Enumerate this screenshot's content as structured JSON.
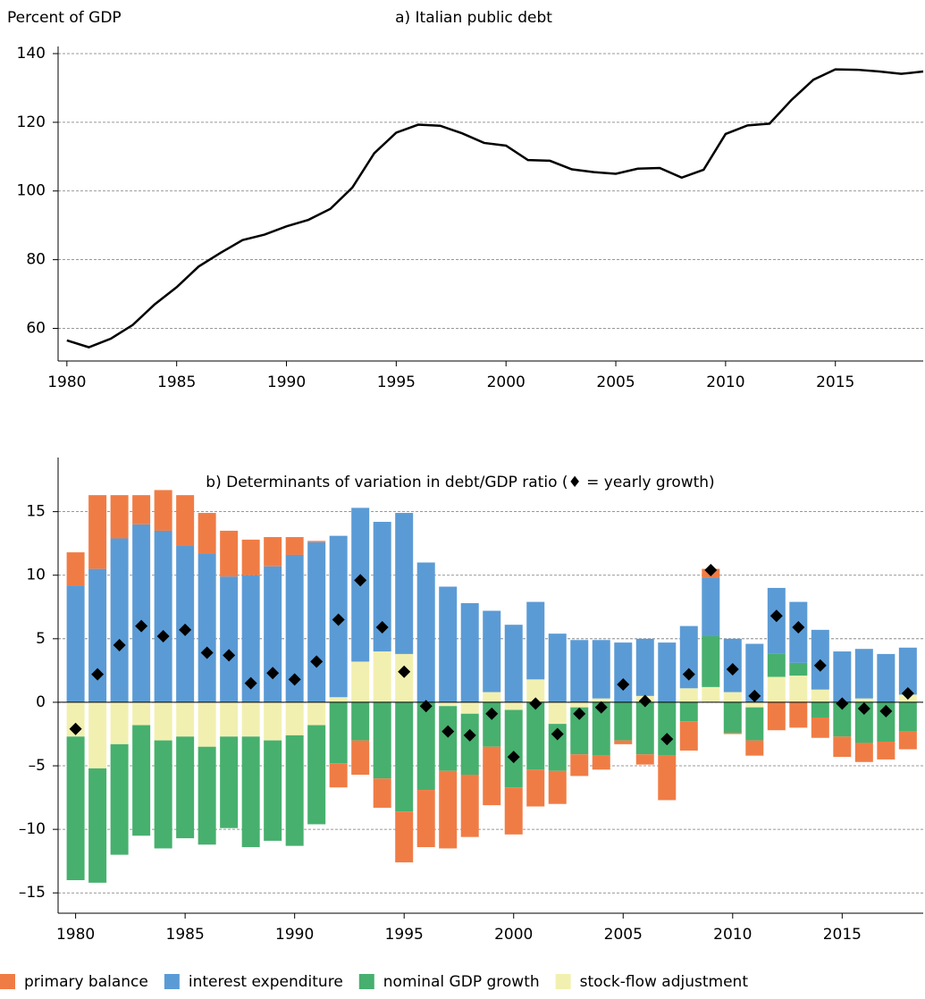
{
  "chart_data": [
    {
      "type": "line",
      "title": "a) Italian public debt",
      "ylabel": "Percent of GDP",
      "color": "#000000",
      "x": [
        1980,
        1981,
        1982,
        1983,
        1984,
        1985,
        1986,
        1987,
        1988,
        1989,
        1990,
        1991,
        1992,
        1993,
        1994,
        1995,
        1996,
        1997,
        1998,
        1999,
        2000,
        2001,
        2002,
        2003,
        2004,
        2005,
        2006,
        2007,
        2008,
        2009,
        2010,
        2011,
        2012,
        2013,
        2014,
        2015,
        2016,
        2017,
        2018,
        2019
      ],
      "values": [
        56.5,
        54.5,
        57,
        61,
        67,
        72,
        78,
        82,
        85.7,
        87.3,
        89.7,
        91.6,
        94.8,
        101,
        111,
        117,
        119.3,
        119,
        116.8,
        114,
        113.2,
        109,
        108.8,
        106.3,
        105.5,
        105,
        106.5,
        106.7,
        103.9,
        106.2,
        116.6,
        119.1,
        119.6,
        126.5,
        132.4,
        135.4,
        135.3,
        134.8,
        134.1,
        134.8
      ],
      "xlim": [
        1979.6,
        2019.0
      ],
      "ylim": [
        50.5,
        140
      ],
      "xticks": [
        1980,
        1985,
        1990,
        1995,
        2000,
        2005,
        2010,
        2015
      ],
      "yticks": [
        60,
        80,
        100,
        120,
        140
      ],
      "grid": true
    },
    {
      "type": "stacked_bar",
      "title": "b) Determinants of variation in debt/GDP ratio (♦ = yearly growth)",
      "x": [
        1980,
        1981,
        1982,
        1983,
        1984,
        1985,
        1986,
        1987,
        1988,
        1989,
        1990,
        1991,
        1992,
        1993,
        1994,
        1995,
        1996,
        1997,
        1998,
        1999,
        2000,
        2001,
        2002,
        2003,
        2004,
        2005,
        2006,
        2007,
        2008,
        2009,
        2010,
        2011,
        2012,
        2013,
        2014,
        2015,
        2016,
        2017,
        2018
      ],
      "series": [
        {
          "name": "primary balance",
          "color": "#f07c45",
          "values": [
            2.6,
            5.8,
            3.4,
            2.3,
            3.2,
            4.0,
            3.2,
            3.6,
            2.8,
            2.3,
            1.4,
            0.1,
            -1.9,
            -2.7,
            -2.3,
            -4.0,
            -4.5,
            -6.1,
            -4.9,
            -4.6,
            -3.7,
            -2.9,
            -2.6,
            -1.7,
            -1.1,
            -0.3,
            -0.8,
            -3.5,
            -2.3,
            0.7,
            -0.1,
            -1.2,
            -2.2,
            -2.0,
            -1.6,
            -1.6,
            -1.5,
            -1.4,
            -1.4
          ]
        },
        {
          "name": "interest expenditure",
          "color": "#5b9bd5",
          "values": [
            9.2,
            10.5,
            12.9,
            14.0,
            13.5,
            12.3,
            11.7,
            9.9,
            10.0,
            10.7,
            11.6,
            12.6,
            12.7,
            12.1,
            10.2,
            11.1,
            11.0,
            9.1,
            7.8,
            6.4,
            6.1,
            6.1,
            5.4,
            4.9,
            4.6,
            4.7,
            4.5,
            4.7,
            4.9,
            4.6,
            4.2,
            4.6,
            5.2,
            4.8,
            4.7,
            4.0,
            3.9,
            3.8,
            3.7
          ]
        },
        {
          "name": "nominal GDP growth",
          "color": "#47b06e",
          "values": [
            -11.3,
            -9.0,
            -8.7,
            -8.7,
            -8.5,
            -8.0,
            -7.7,
            -7.2,
            -8.7,
            -7.9,
            -8.7,
            -7.8,
            -4.8,
            -3.0,
            -6.0,
            -8.6,
            -6.9,
            -5.1,
            -4.8,
            -3.5,
            -6.1,
            -5.3,
            -3.7,
            -3.7,
            -4.2,
            -3.0,
            -4.1,
            -4.2,
            -1.5,
            4.0,
            -2.4,
            -2.6,
            1.8,
            1.0,
            -1.2,
            -2.7,
            -3.2,
            -3.1,
            -2.3
          ]
        },
        {
          "name": "stock-flow adjustment",
          "color": "#f2f0b0",
          "values": [
            -2.7,
            -5.2,
            -3.3,
            -1.8,
            -3.0,
            -2.7,
            -3.5,
            -2.7,
            -2.7,
            -3.0,
            -2.6,
            -1.8,
            0.4,
            3.2,
            4.0,
            3.8,
            0,
            -0.3,
            -0.9,
            0.8,
            -0.6,
            1.8,
            -1.7,
            -0.4,
            0.3,
            0,
            0.5,
            0,
            1.1,
            1.2,
            0.8,
            -0.4,
            2.0,
            2.1,
            1.0,
            0,
            0.3,
            0,
            0.6
          ]
        }
      ],
      "markers": {
        "values": [
          -2.1,
          2.2,
          4.5,
          6.0,
          5.2,
          5.7,
          3.9,
          3.7,
          1.5,
          2.3,
          1.8,
          3.2,
          6.5,
          9.6,
          5.9,
          2.4,
          -0.3,
          -2.3,
          -2.6,
          -0.9,
          -4.3,
          -0.1,
          -2.5,
          -0.9,
          -0.4,
          1.4,
          0.1,
          -2.9,
          2.2,
          10.4,
          2.6,
          0.5,
          6.8,
          5.9,
          2.9,
          -0.1,
          -0.5,
          -0.7,
          0.7
        ]
      },
      "xlim": [
        1979.2,
        2018.7
      ],
      "ylim": [
        -16.6,
        18.7
      ],
      "xticks": [
        1980,
        1985,
        1990,
        1995,
        2000,
        2005,
        2010,
        2015
      ],
      "yticks": [
        15,
        10,
        5,
        0,
        {
          "value": -5,
          "label": "–5"
        },
        {
          "value": -10,
          "label": "–10"
        },
        {
          "value": -15,
          "label": "–15"
        }
      ],
      "grid": true
    }
  ]
}
